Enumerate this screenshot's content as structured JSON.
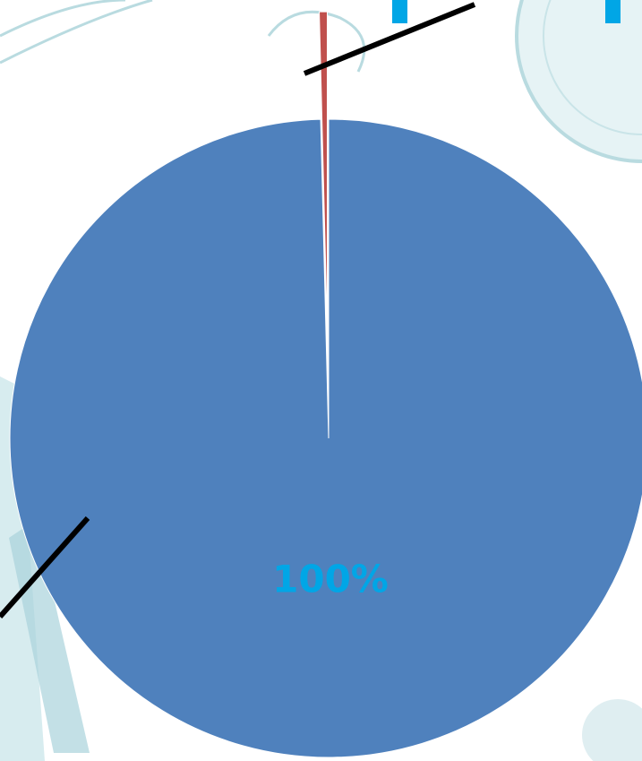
{
  "chart_data": {
    "type": "pie",
    "categories": [
      null,
      null
    ],
    "values": [
      99.6,
      0.4
    ],
    "value_labels": [
      "100%",
      null
    ],
    "colors": [
      "#4f81bd",
      "#c0504d"
    ],
    "label_color": "#00a6e6",
    "exploded": [
      false,
      true
    ]
  }
}
